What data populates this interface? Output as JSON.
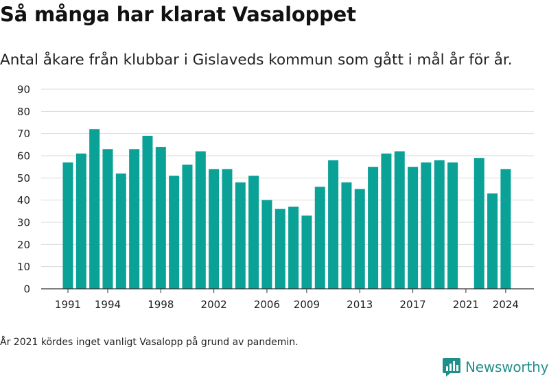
{
  "title": "Så många har klarat Vasaloppet",
  "subtitle": "Antal åkare från klubbar i Gislaveds kommun som gått i mål år för år.",
  "note": "År 2021 kördes inget vanligt Vasalopp på grund av pandemin.",
  "brand": {
    "name": "Newsworthy",
    "color": "#1f8f8a",
    "icon": "newsworthy-chart-logo-icon"
  },
  "colors": {
    "bar": "#0aa197",
    "grid": "#d9d9d9",
    "axis": "#333333"
  },
  "chart_data": {
    "type": "bar",
    "x": [
      1991,
      1992,
      1993,
      1994,
      1995,
      1996,
      1997,
      1998,
      1999,
      2000,
      2001,
      2002,
      2003,
      2004,
      2005,
      2006,
      2007,
      2008,
      2009,
      2010,
      2011,
      2012,
      2013,
      2014,
      2015,
      2016,
      2017,
      2018,
      2019,
      2020,
      2021,
      2022,
      2023,
      2024
    ],
    "values": [
      57,
      61,
      72,
      63,
      52,
      63,
      69,
      64,
      51,
      56,
      62,
      54,
      54,
      48,
      51,
      40,
      36,
      37,
      33,
      46,
      58,
      48,
      45,
      55,
      61,
      62,
      55,
      57,
      58,
      57,
      null,
      59,
      43,
      54
    ],
    "xticks": [
      "1991",
      "1994",
      "1998",
      "2002",
      "2006",
      "2009",
      "2013",
      "2017",
      "2021",
      "2024"
    ],
    "yticks": [
      "0",
      "10",
      "20",
      "30",
      "40",
      "50",
      "60",
      "70",
      "80",
      "90"
    ],
    "ylim": [
      0,
      90
    ],
    "grid": true,
    "legend": "none"
  }
}
